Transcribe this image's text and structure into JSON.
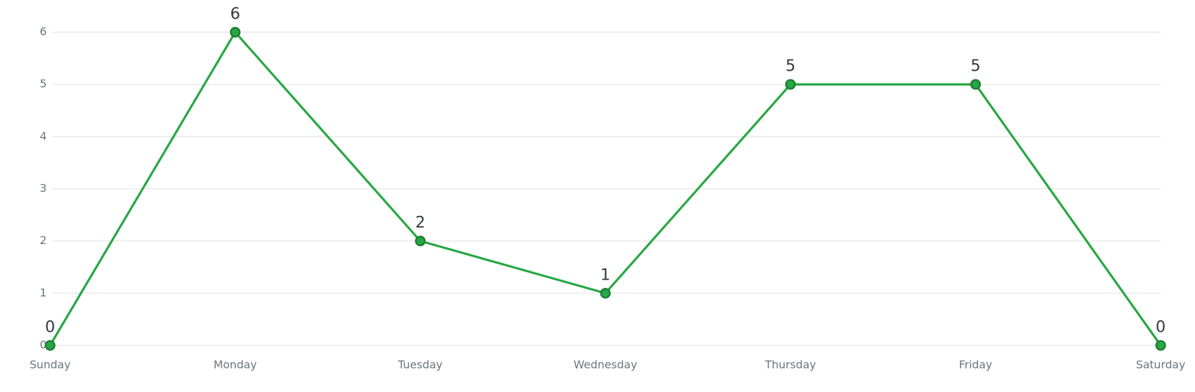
{
  "chart_data": {
    "type": "line",
    "categories": [
      "Sunday",
      "Monday",
      "Tuesday",
      "Wednesday",
      "Thursday",
      "Friday",
      "Saturday"
    ],
    "values": [
      0,
      6,
      2,
      1,
      5,
      5,
      0
    ],
    "color": "#28a745",
    "ylim": [
      0,
      6
    ],
    "yticks": [
      0,
      1,
      2,
      3,
      4,
      5,
      6
    ],
    "grid": true
  }
}
